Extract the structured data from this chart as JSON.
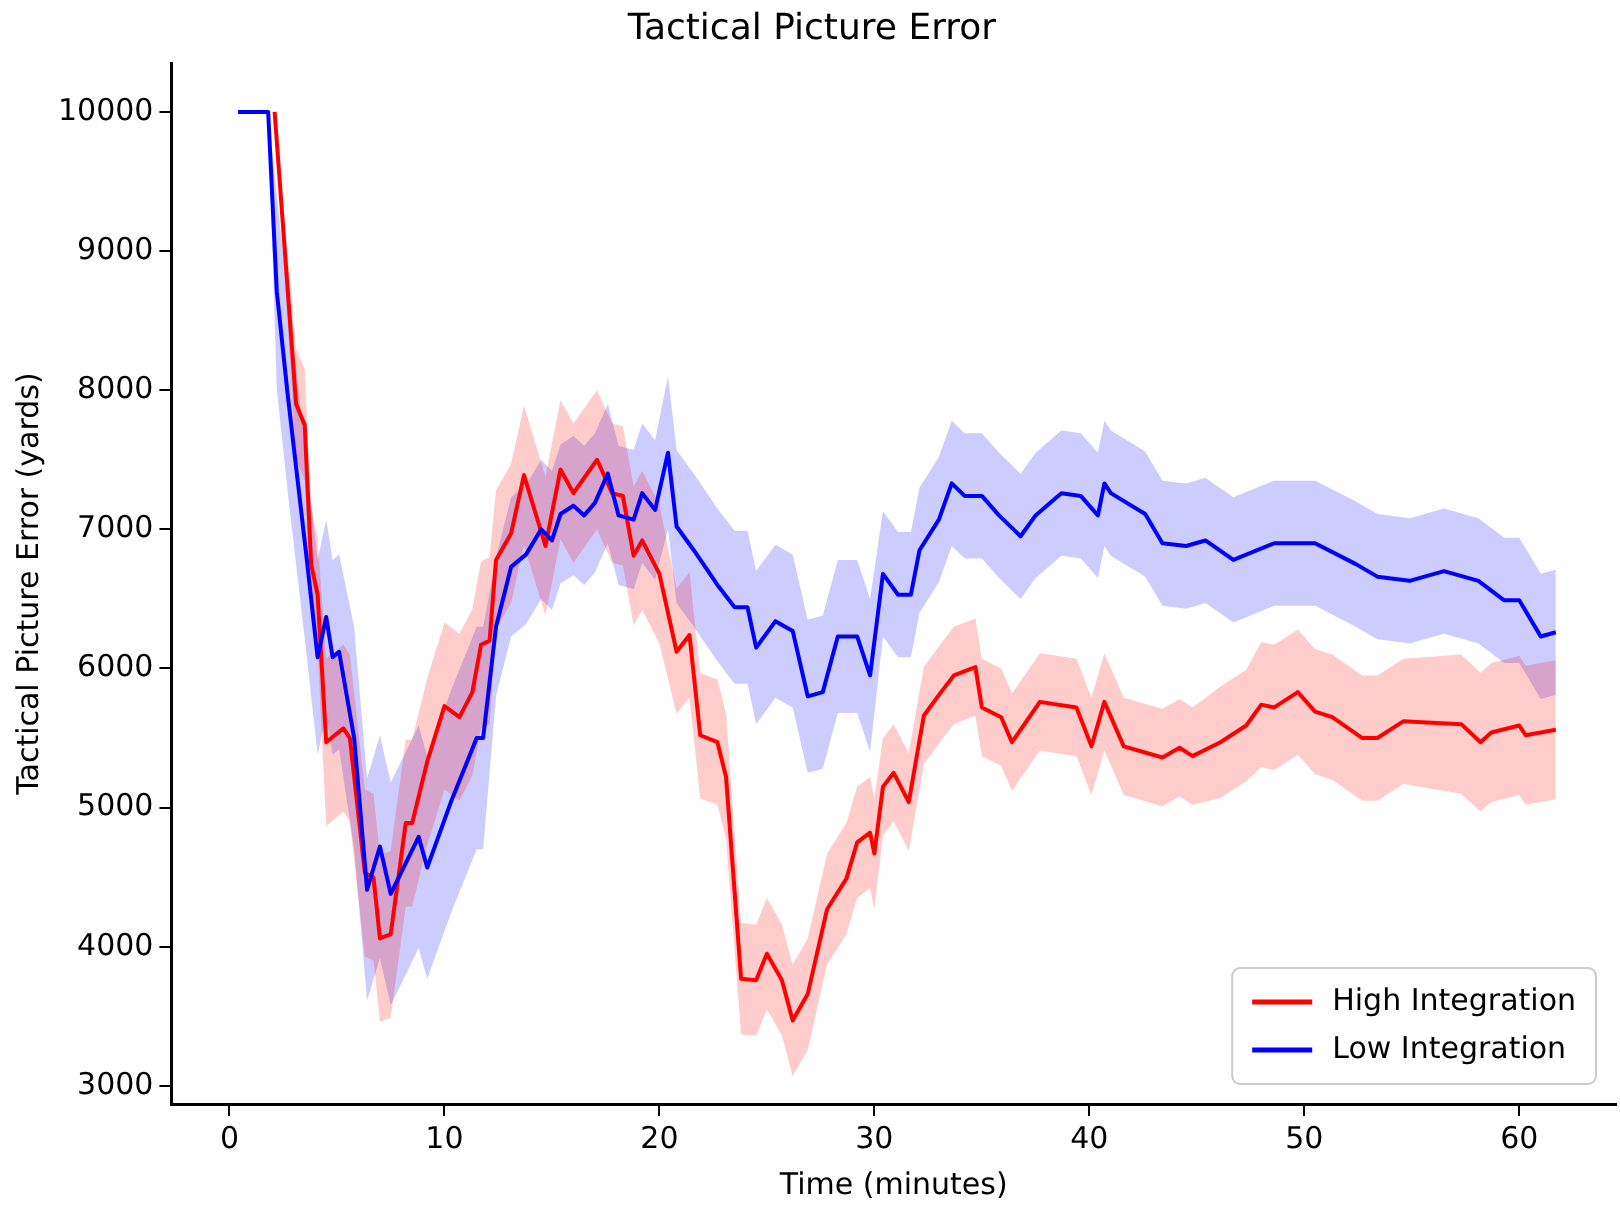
{
  "chart_data": {
    "type": "line",
    "title": "Tactical Picture Error",
    "xlabel": "Time (minutes)",
    "ylabel": "Tactical Picture Error (yards)",
    "xlim": [
      -2.7,
      64.5
    ],
    "xticks": [
      0,
      10,
      20,
      30,
      40,
      50,
      60
    ],
    "ylim": [
      2870,
      10350
    ],
    "yticks": [
      3000,
      4000,
      5000,
      6000,
      7000,
      8000,
      9000,
      10000
    ],
    "grid": false,
    "legend": "bottom right",
    "marker": "none",
    "line_style": "solid",
    "series": [
      {
        "name": "High Integration",
        "color": "#ff0000",
        "x": [
          2.1,
          3.1,
          3.5,
          3.8,
          4.1,
          4.5,
          5.3,
          5.6,
          6.3,
          6.7,
          7.0,
          7.5,
          8.2,
          8.5,
          9.2,
          10.0,
          10.7,
          11.3,
          11.7,
          12.1,
          12.4,
          13.1,
          13.7,
          14.7,
          15.4,
          16.0,
          17.1,
          17.8,
          18.3,
          18.8,
          19.2,
          20.0,
          20.8,
          21.4,
          21.9,
          22.7,
          23.1,
          23.8,
          24.5,
          25.0,
          25.7,
          26.2,
          26.9,
          27.8,
          28.7,
          29.2,
          29.8,
          30.0,
          30.4,
          30.9,
          31.6,
          32.3,
          33.1,
          33.7,
          34.7,
          35.0,
          35.9,
          36.4,
          37.7,
          39.4,
          40.1,
          40.7,
          41.6,
          43.4,
          44.2,
          44.8,
          46.1,
          47.3,
          48.0,
          48.6,
          49.7,
          50.5,
          51.3,
          52.7,
          53.4,
          54.6,
          57.3,
          58.2,
          58.7,
          60.0,
          60.3,
          61.7
        ],
        "values": [
          10000,
          7900,
          7750,
          6750,
          6530,
          5470,
          5570,
          5500,
          4530,
          4500,
          4060,
          4090,
          4890,
          4890,
          5330,
          5730,
          5650,
          5830,
          6170,
          6200,
          6780,
          6970,
          7390,
          6880,
          7430,
          7260,
          7500,
          7260,
          7240,
          6810,
          6920,
          6680,
          6120,
          6240,
          5520,
          5470,
          5220,
          3770,
          3760,
          3950,
          3760,
          3470,
          3660,
          4270,
          4490,
          4750,
          4820,
          4670,
          5150,
          5250,
          5040,
          5660,
          5830,
          5950,
          6010,
          5720,
          5650,
          5470,
          5760,
          5720,
          5440,
          5760,
          5440,
          5360,
          5430,
          5370,
          5470,
          5590,
          5740,
          5720,
          5830,
          5690,
          5650,
          5500,
          5500,
          5620,
          5600,
          5470,
          5540,
          5590,
          5520,
          5560
        ],
        "lower": [
          10000,
          7500,
          7350,
          6350,
          6130,
          4870,
          4970,
          4900,
          3930,
          3900,
          3460,
          3490,
          4290,
          4290,
          4730,
          5130,
          5050,
          5230,
          5570,
          5600,
          6280,
          6470,
          6890,
          6380,
          6930,
          6760,
          7000,
          6760,
          6740,
          6310,
          6420,
          6180,
          5675,
          5790,
          5065,
          5020,
          4775,
          3370,
          3360,
          3550,
          3360,
          3070,
          3260,
          3870,
          4090,
          4350,
          4420,
          4270,
          4800,
          4900,
          4690,
          5310,
          5480,
          5600,
          5660,
          5370,
          5300,
          5120,
          5410,
          5370,
          5090,
          5410,
          5090,
          5010,
          5080,
          5020,
          5070,
          5190,
          5290,
          5270,
          5380,
          5240,
          5200,
          5050,
          5050,
          5170,
          5100,
          4970,
          5040,
          5090,
          5020,
          5060
        ],
        "upper": [
          10000,
          8300,
          8150,
          7150,
          6930,
          6070,
          6170,
          6100,
          5130,
          5100,
          4660,
          4690,
          5490,
          5490,
          5930,
          6330,
          6250,
          6430,
          6770,
          6800,
          7280,
          7470,
          7890,
          7380,
          7930,
          7760,
          8000,
          7760,
          7740,
          7310,
          7420,
          7180,
          6575,
          6690,
          5965,
          5920,
          5675,
          4170,
          4160,
          4350,
          4160,
          3870,
          4060,
          4670,
          4890,
          5150,
          5220,
          5070,
          5500,
          5600,
          5390,
          6010,
          6180,
          6300,
          6360,
          6070,
          6000,
          5820,
          6110,
          6070,
          5790,
          6110,
          5790,
          5710,
          5780,
          5720,
          5870,
          5990,
          6190,
          6170,
          6280,
          6140,
          6100,
          5950,
          5950,
          6070,
          6100,
          5970,
          6040,
          6090,
          6020,
          6060
        ]
      },
      {
        "name": "Low Integration",
        "color": "#0000ff",
        "x": [
          0.4,
          1.8,
          2.2,
          2.7,
          3.6,
          4.1,
          4.5,
          4.8,
          5.1,
          5.8,
          6.4,
          7.0,
          7.5,
          8.8,
          9.2,
          10.3,
          11.5,
          11.8,
          12.4,
          13.1,
          13.8,
          14.5,
          15.0,
          15.4,
          16.0,
          16.5,
          17.0,
          17.6,
          18.1,
          18.8,
          19.2,
          19.8,
          20.4,
          20.8,
          21.6,
          22.7,
          23.5,
          24.1,
          24.5,
          25.4,
          26.2,
          26.9,
          27.6,
          28.3,
          29.2,
          29.8,
          30.4,
          31.1,
          31.7,
          32.1,
          33.0,
          33.6,
          34.2,
          35.0,
          35.8,
          36.8,
          37.5,
          38.7,
          39.6,
          40.4,
          40.7,
          41.0,
          42.6,
          43.4,
          44.5,
          45.4,
          46.7,
          48.6,
          49.6,
          50.5,
          52.4,
          53.4,
          54.9,
          56.5,
          58.1,
          59.3,
          60.0,
          61.0,
          61.7
        ],
        "values": [
          10000,
          10000,
          8710,
          7980,
          6780,
          6080,
          6370,
          6080,
          6120,
          5500,
          4410,
          4720,
          4380,
          4790,
          4570,
          5040,
          5500,
          5500,
          6300,
          6730,
          6820,
          7000,
          6920,
          7110,
          7170,
          7100,
          7190,
          7400,
          7100,
          7070,
          7260,
          7140,
          7550,
          7020,
          6850,
          6600,
          6440,
          6440,
          6150,
          6340,
          6270,
          5800,
          5830,
          6230,
          6230,
          5950,
          6680,
          6530,
          6530,
          6850,
          7070,
          7330,
          7240,
          7240,
          7100,
          6950,
          7100,
          7260,
          7240,
          7100,
          7330,
          7260,
          7110,
          6900,
          6880,
          6920,
          6780,
          6900,
          6900,
          6900,
          6750,
          6660,
          6630,
          6700,
          6630,
          6490,
          6490,
          6230,
          6260
        ],
        "lower": [
          10000,
          10000,
          8010,
          7280,
          6080,
          5380,
          5670,
          5380,
          5420,
          4700,
          3610,
          3920,
          3580,
          3990,
          3770,
          4240,
          4700,
          4700,
          5800,
          6230,
          6320,
          6500,
          6420,
          6610,
          6670,
          6600,
          6690,
          6900,
          6600,
          6570,
          6760,
          6640,
          7000,
          6470,
          6300,
          6050,
          5890,
          5890,
          5600,
          5790,
          5720,
          5250,
          5280,
          5680,
          5680,
          5400,
          6230,
          6080,
          6080,
          6400,
          6620,
          6880,
          6790,
          6790,
          6650,
          6500,
          6650,
          6810,
          6790,
          6650,
          6880,
          6810,
          6660,
          6450,
          6430,
          6470,
          6330,
          6450,
          6450,
          6450,
          6300,
          6210,
          6180,
          6250,
          6180,
          6040,
          6040,
          5780,
          5810
        ],
        "upper": [
          10000,
          10000,
          9410,
          8680,
          7480,
          6780,
          7070,
          6780,
          6820,
          6300,
          5210,
          5520,
          5180,
          5590,
          5370,
          5840,
          6300,
          6300,
          6800,
          7230,
          7320,
          7500,
          7420,
          7610,
          7670,
          7600,
          7690,
          7900,
          7600,
          7570,
          7760,
          7640,
          8100,
          7570,
          7400,
          7150,
          6990,
          6990,
          6700,
          6890,
          6820,
          6350,
          6380,
          6780,
          6780,
          6500,
          7130,
          6980,
          6980,
          7300,
          7520,
          7780,
          7690,
          7690,
          7550,
          7400,
          7550,
          7710,
          7690,
          7550,
          7780,
          7710,
          7560,
          7350,
          7330,
          7370,
          7230,
          7350,
          7350,
          7350,
          7200,
          7110,
          7080,
          7150,
          7080,
          6940,
          6940,
          6680,
          6710
        ]
      }
    ]
  }
}
